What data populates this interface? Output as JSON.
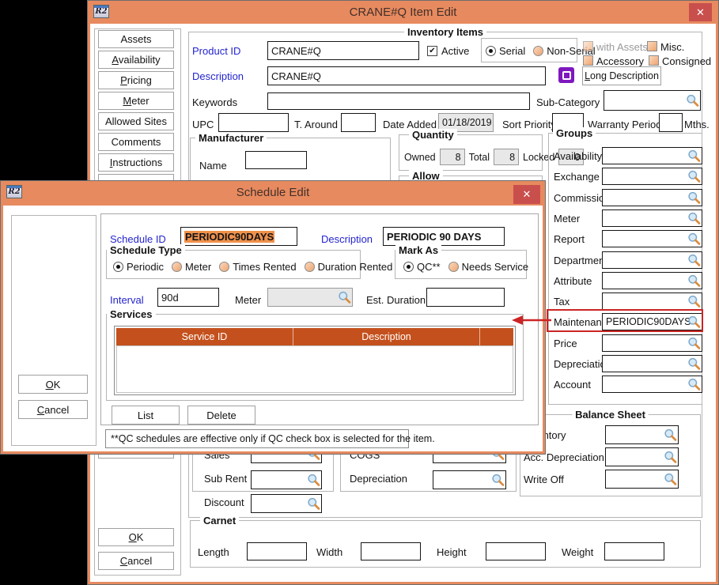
{
  "icons": {
    "r2_label": "R2",
    "close": "✕",
    "lookup": "magnifier-icon",
    "long_desc_icon": "purple-notes-icon",
    "check": "✔"
  },
  "colors": {
    "titlebar": "#E78A5F",
    "close_button": "#C94F4D",
    "table_header": "#C4511D",
    "selection": "#F0914B",
    "annotation_red": "#CC2424",
    "label_blue": "#2424CF"
  },
  "item_edit": {
    "title": "CRANE#Q Item Edit",
    "sidebar": {
      "buttons": [
        "Assets",
        "Availability",
        "Pricing",
        "Meter",
        "Allowed Sites",
        "Comments",
        "Instructions"
      ],
      "ok": "OK",
      "cancel": "Cancel"
    },
    "inventory": {
      "legend": "Inventory Items",
      "product_id": {
        "label": "Product ID",
        "value": "CRANE#Q"
      },
      "active": {
        "label": "Active",
        "checked": true
      },
      "serial": "Serial",
      "non_serial": "Non-Serial",
      "with_assets": "with Assets",
      "misc": "Misc.",
      "accessory": "Accessory",
      "consigned": "Consigned",
      "description": {
        "label": "Description",
        "value": "CRANE#Q"
      },
      "long_description": "Long Description",
      "keywords": {
        "label": "Keywords",
        "value": ""
      },
      "sub_category": {
        "label": "Sub-Category",
        "value": ""
      },
      "upc": {
        "label": "UPC",
        "value": ""
      },
      "t_around": {
        "label": "T. Around",
        "value": ""
      },
      "date_added": {
        "label": "Date Added",
        "value": "01/18/2019"
      },
      "sort_priority": {
        "label": "Sort Priority",
        "value": ""
      },
      "warranty_period": {
        "label": "Warranty Period",
        "value": "",
        "suffix": "Mths."
      }
    },
    "manufacturer": {
      "legend": "Manufacturer",
      "name_label": "Name",
      "name_value": ""
    },
    "quantity": {
      "legend": "Quantity",
      "owned_label": "Owned",
      "owned": "8",
      "total_label": "Total",
      "total": "8",
      "locked_label": "Locked",
      "locked": "0"
    },
    "allow": {
      "legend": "Allow"
    },
    "groups": {
      "legend": "Groups",
      "rows": [
        {
          "label": "Availability",
          "value": ""
        },
        {
          "label": "Exchange",
          "value": ""
        },
        {
          "label": "Commission",
          "value": ""
        },
        {
          "label": "Meter",
          "value": ""
        },
        {
          "label": "Report",
          "value": ""
        },
        {
          "label": "Department",
          "value": ""
        },
        {
          "label": "Attribute",
          "value": ""
        },
        {
          "label": "Tax",
          "value": ""
        },
        {
          "label": "Maintenance",
          "value": "PERIODIC90DAYS"
        },
        {
          "label": "Price",
          "value": ""
        },
        {
          "label": "Depreciation",
          "value": ""
        },
        {
          "label": "Account",
          "value": ""
        }
      ]
    },
    "gl_left": {
      "row1": "Sales",
      "row2": "Sub Rent",
      "row3": "Discount"
    },
    "gl_mid": {
      "row1": "COGS",
      "row2": "Depreciation"
    },
    "balance_sheet": {
      "legend": "Balance Sheet",
      "rows": [
        {
          "label": "Inventory"
        },
        {
          "label": "Acc. Depreciation"
        },
        {
          "label": "Write Off"
        }
      ]
    },
    "carnet": {
      "legend": "Carnet",
      "length": "Length",
      "width": "Width",
      "height": "Height",
      "weight": "Weight"
    },
    "ok": "OK",
    "cancel": "Cancel"
  },
  "schedule_edit": {
    "title": "Schedule Edit",
    "schedule_id": {
      "label": "Schedule ID",
      "value": "PERIODIC90DAYS"
    },
    "description": {
      "label": "Description",
      "value": "PERIODIC 90 DAYS"
    },
    "schedule_type": {
      "legend": "Schedule Type",
      "options": [
        "Periodic",
        "Meter",
        "Times Rented",
        "Duration Rented"
      ],
      "selected": "Periodic"
    },
    "mark_as": {
      "legend": "Mark As",
      "options": [
        "QC**",
        "Needs Service"
      ],
      "selected": "QC**"
    },
    "interval": {
      "label": "Interval",
      "value": "90d"
    },
    "meter": {
      "label": "Meter",
      "value": ""
    },
    "est_duration": {
      "label": "Est.  Duration",
      "value": ""
    },
    "services": {
      "legend": "Services",
      "columns": [
        "Service ID",
        "Description"
      ],
      "rows": []
    },
    "list": "List",
    "delete": "Delete",
    "ok": "OK",
    "cancel": "Cancel",
    "note": "**QC schedules are effective only if QC check box is selected for the item."
  }
}
